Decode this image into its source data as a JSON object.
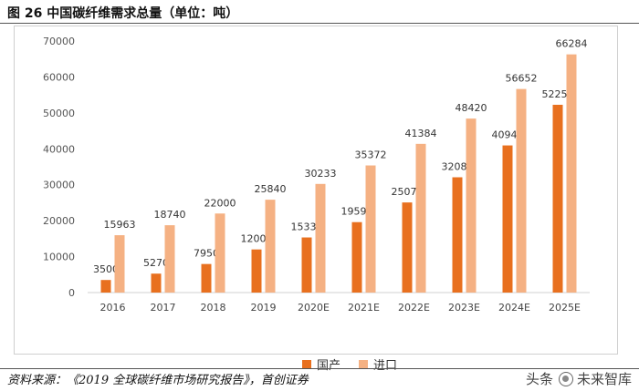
{
  "figure": {
    "title": "图 26 中国碳纤维需求总量（单位：吨）",
    "source": "资料来源：《2019 全球碳纤维市场研究报告》，首创证券",
    "watermark_prefix": "头条",
    "watermark_name": "未来智库"
  },
  "chart_data": {
    "type": "bar",
    "title": "中国碳纤维需求总量（单位：吨）",
    "xlabel": "",
    "ylabel": "",
    "ylim": [
      0,
      70000
    ],
    "yticks": [
      0,
      10000,
      20000,
      30000,
      40000,
      50000,
      60000,
      70000
    ],
    "categories": [
      "2016",
      "2017",
      "2018",
      "2019",
      "2020E",
      "2021E",
      "2022E",
      "2023E",
      "2024E",
      "2025E"
    ],
    "series": [
      {
        "name": "国产",
        "color": "#E8701F",
        "values": [
          3500,
          5270,
          7950,
          12000,
          15336,
          19599,
          25074,
          32081,
          40943,
          52254
        ]
      },
      {
        "name": "进口",
        "color": "#F5B183",
        "values": [
          15963,
          18740,
          22000,
          25840,
          30233,
          35372,
          41384,
          48420,
          56652,
          66284
        ]
      }
    ],
    "grid": false,
    "legend": "bottom"
  }
}
